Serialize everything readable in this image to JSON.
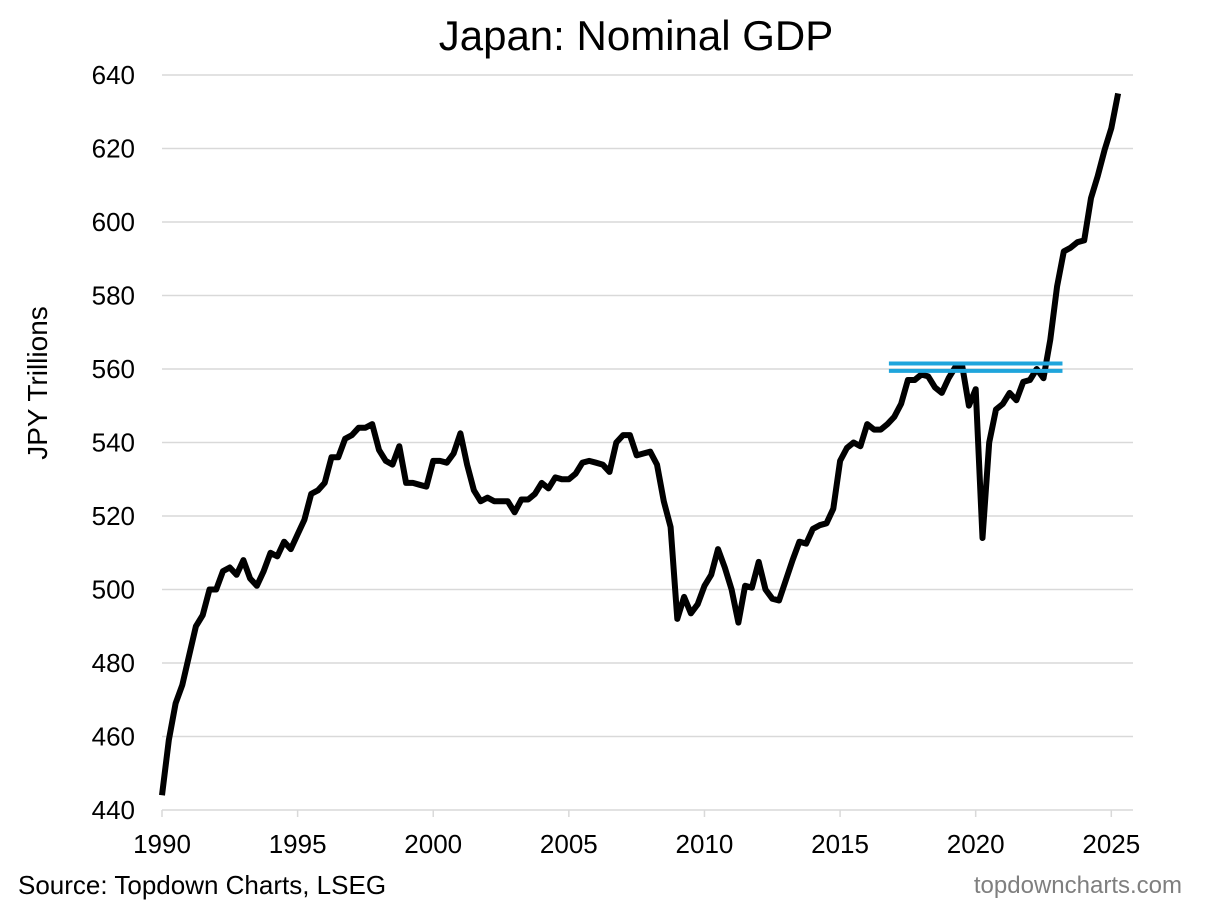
{
  "source_note": "Source: Topdown Charts, LSEG",
  "watermark": "topdowncharts.com",
  "chart_data": {
    "type": "line",
    "title": "Japan: Nominal GDP",
    "xlabel": "",
    "ylabel": "JPY Trillions",
    "xlim": [
      1990,
      2025.8
    ],
    "ylim": [
      440,
      640
    ],
    "x_ticks": [
      1990,
      1995,
      2000,
      2005,
      2010,
      2015,
      2020,
      2025
    ],
    "y_ticks": [
      440,
      460,
      480,
      500,
      520,
      540,
      560,
      580,
      600,
      620,
      640
    ],
    "grid": "horizontal",
    "legend": "none",
    "series": [
      {
        "color": "#000000",
        "x": [
          1990.0,
          1990.25,
          1990.5,
          1990.75,
          1991.0,
          1991.25,
          1991.5,
          1991.75,
          1992.0,
          1992.25,
          1992.5,
          1992.75,
          1993.0,
          1993.25,
          1993.5,
          1993.75,
          1994.0,
          1994.25,
          1994.5,
          1994.75,
          1995.0,
          1995.25,
          1995.5,
          1995.75,
          1996.0,
          1996.25,
          1996.5,
          1996.75,
          1997.0,
          1997.25,
          1997.5,
          1997.75,
          1998.0,
          1998.25,
          1998.5,
          1998.75,
          1999.0,
          1999.25,
          1999.5,
          1999.75,
          2000.0,
          2000.25,
          2000.5,
          2000.75,
          2001.0,
          2001.25,
          2001.5,
          2001.75,
          2002.0,
          2002.25,
          2002.5,
          2002.75,
          2003.0,
          2003.25,
          2003.5,
          2003.75,
          2004.0,
          2004.25,
          2004.5,
          2004.75,
          2005.0,
          2005.25,
          2005.5,
          2005.75,
          2006.0,
          2006.25,
          2006.5,
          2006.75,
          2007.0,
          2007.25,
          2007.5,
          2007.75,
          2008.0,
          2008.25,
          2008.5,
          2008.75,
          2009.0,
          2009.25,
          2009.5,
          2009.75,
          2010.0,
          2010.25,
          2010.5,
          2010.75,
          2011.0,
          2011.25,
          2011.5,
          2011.75,
          2012.0,
          2012.25,
          2012.5,
          2012.75,
          2013.0,
          2013.25,
          2013.5,
          2013.75,
          2014.0,
          2014.25,
          2014.5,
          2014.75,
          2015.0,
          2015.25,
          2015.5,
          2015.75,
          2016.0,
          2016.25,
          2016.5,
          2016.75,
          2017.0,
          2017.25,
          2017.5,
          2017.75,
          2018.0,
          2018.25,
          2018.5,
          2018.75,
          2019.0,
          2019.25,
          2019.5,
          2019.75,
          2020.0,
          2020.25,
          2020.5,
          2020.75,
          2021.0,
          2021.25,
          2021.5,
          2021.75,
          2022.0,
          2022.25,
          2022.5,
          2022.75,
          2023.0,
          2023.25,
          2023.5,
          2023.75,
          2024.0,
          2024.25,
          2024.5,
          2024.75,
          2025.0,
          2025.25
        ],
        "values": [
          444,
          459,
          469,
          474,
          482,
          490,
          493,
          500,
          500,
          505,
          506,
          504,
          508,
          503,
          501,
          505,
          510,
          509,
          513,
          511,
          515,
          519,
          526,
          527,
          529,
          536,
          536,
          541,
          542,
          544,
          544,
          545,
          538,
          535,
          534,
          539,
          529,
          529,
          528.5,
          528,
          535,
          535,
          534.5,
          537,
          542.5,
          534,
          527,
          524,
          525,
          524,
          524,
          524,
          521,
          524.5,
          524.5,
          526,
          529,
          527.5,
          530.5,
          530,
          530,
          531.5,
          534.5,
          535,
          534.5,
          534,
          532,
          540,
          542,
          542,
          536.5,
          537,
          537.5,
          534,
          524,
          517,
          492,
          498,
          493.5,
          496,
          501,
          504,
          511,
          506,
          500,
          491,
          501,
          500.5,
          507.5,
          500,
          497.5,
          497,
          502.5,
          508,
          513,
          512.5,
          516.5,
          517.5,
          518,
          522,
          535,
          538.5,
          540,
          539,
          545,
          543.5,
          543.5,
          545,
          547,
          550.5,
          557,
          557,
          558.5,
          558,
          555,
          553.5,
          557.5,
          560.5,
          561,
          550,
          554.5,
          514,
          540,
          549,
          550.5,
          553.5,
          551.5,
          556.5,
          557,
          560,
          557.5,
          568,
          582.5,
          592,
          593,
          594.5,
          595,
          606.5,
          612.5,
          619.5,
          625.5,
          635
        ]
      }
    ],
    "annotations": [
      {
        "type": "hline",
        "y": 561.5,
        "x_from": 2016.8,
        "x_to": 2023.2,
        "color": "#1fa5dc"
      },
      {
        "type": "hline",
        "y": 559.5,
        "x_from": 2016.8,
        "x_to": 2023.2,
        "color": "#1fa5dc"
      }
    ]
  }
}
